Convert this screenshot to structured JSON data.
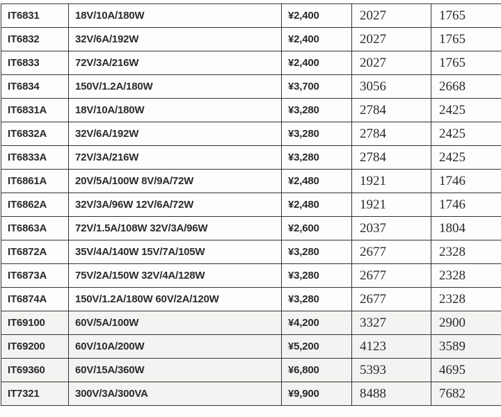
{
  "table": {
    "rows": [
      [
        "IT6831",
        "18V/10A/180W",
        "¥2,400",
        "2027",
        "1765"
      ],
      [
        "IT6832",
        "32V/6A/192W",
        "¥2,400",
        "2027",
        "1765"
      ],
      [
        "IT6833",
        "72V/3A/216W",
        "¥2,400",
        "2027",
        "1765"
      ],
      [
        "IT6834",
        "150V/1.2A/180W",
        "¥3,700",
        "3056",
        "2668"
      ],
      [
        "IT6831A",
        "18V/10A/180W",
        "¥3,280",
        "2784",
        "2425"
      ],
      [
        "IT6832A",
        "32V/6A/192W",
        "¥3,280",
        "2784",
        "2425"
      ],
      [
        "IT6833A",
        "72V/3A/216W",
        "¥3,280",
        "2784",
        "2425"
      ],
      [
        "IT6861A",
        "20V/5A/100W 8V/9A/72W",
        "¥2,480",
        "1921",
        "1746"
      ],
      [
        "IT6862A",
        "32V/3A/96W 12V/6A/72W",
        "¥2,480",
        "1921",
        "1746"
      ],
      [
        "IT6863A",
        "72V/1.5A/108W 32V/3A/96W",
        "¥2,600",
        "2037",
        "1804"
      ],
      [
        "IT6872A",
        "35V/4A/140W 15V/7A/105W",
        "¥3,280",
        "2677",
        "2328"
      ],
      [
        "IT6873A",
        "75V/2A/150W 32V/4A/128W",
        "¥3,280",
        "2677",
        "2328"
      ],
      [
        "IT6874A",
        "150V/1.2A/180W 60V/2A/120W",
        "¥3,280",
        "2677",
        "2328"
      ],
      [
        "IT69100",
        "60V/5A/100W",
        "¥4,200",
        "3327",
        "2900"
      ],
      [
        "IT69200",
        "60V/10A/200W",
        "¥5,200",
        "4123",
        "3589"
      ],
      [
        "IT69360",
        "60V/15A/360W",
        "¥6,800",
        "5393",
        "4695"
      ],
      [
        "IT7321",
        "300V/3A/300VA",
        "¥9,900",
        "8488",
        "7682"
      ]
    ]
  }
}
